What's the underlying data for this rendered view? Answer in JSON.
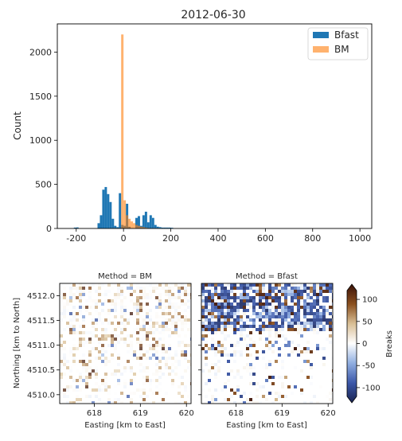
{
  "chart_data": [
    {
      "type": "bar",
      "title": "2012-06-30",
      "xlabel": "",
      "ylabel": "Count",
      "xlim": [
        -280,
        1050
      ],
      "ylim": [
        0,
        2320
      ],
      "xticks": [
        -200,
        0,
        200,
        400,
        600,
        800,
        1000
      ],
      "yticks": [
        0,
        500,
        1000,
        1500,
        2000
      ],
      "legend_position": "top-right",
      "bin_width": 10,
      "series": [
        {
          "name": "Bfast",
          "color": "#1f77b4",
          "alpha": 1.0,
          "bins": [
            {
              "x": -210,
              "count": 10
            },
            {
              "x": -200,
              "count": 12
            },
            {
              "x": -110,
              "count": 60
            },
            {
              "x": -100,
              "count": 150
            },
            {
              "x": -90,
              "count": 440
            },
            {
              "x": -80,
              "count": 470
            },
            {
              "x": -70,
              "count": 390
            },
            {
              "x": -60,
              "count": 300
            },
            {
              "x": -50,
              "count": 110
            },
            {
              "x": -40,
              "count": 30
            },
            {
              "x": -30,
              "count": 15
            },
            {
              "x": -20,
              "count": 400
            },
            {
              "x": -10,
              "count": 40
            },
            {
              "x": 0,
              "count": 30
            },
            {
              "x": 10,
              "count": 280
            },
            {
              "x": 20,
              "count": 20
            },
            {
              "x": 50,
              "count": 120
            },
            {
              "x": 60,
              "count": 140
            },
            {
              "x": 70,
              "count": 30
            },
            {
              "x": 80,
              "count": 150
            },
            {
              "x": 90,
              "count": 190
            },
            {
              "x": 100,
              "count": 70
            },
            {
              "x": 110,
              "count": 150
            },
            {
              "x": 120,
              "count": 120
            },
            {
              "x": 130,
              "count": 40
            },
            {
              "x": 140,
              "count": 20
            },
            {
              "x": 150,
              "count": 15
            },
            {
              "x": 160,
              "count": 10
            },
            {
              "x": 170,
              "count": 10
            },
            {
              "x": 180,
              "count": 10
            },
            {
              "x": 190,
              "count": 10
            },
            {
              "x": 200,
              "count": 8
            }
          ]
        },
        {
          "name": "BM",
          "color": "#ff7f0e",
          "alpha": 0.6,
          "bins": [
            {
              "x": -10,
              "count": 2200
            },
            {
              "x": 0,
              "count": 320
            },
            {
              "x": 10,
              "count": 150
            },
            {
              "x": 20,
              "count": 110
            },
            {
              "x": 30,
              "count": 80
            },
            {
              "x": 40,
              "count": 60
            },
            {
              "x": 50,
              "count": 40
            },
            {
              "x": 60,
              "count": 30
            },
            {
              "x": 70,
              "count": 20
            },
            {
              "x": 80,
              "count": 15
            },
            {
              "x": 90,
              "count": 10
            },
            {
              "x": 100,
              "count": 6
            }
          ]
        }
      ]
    },
    {
      "type": "heatmap",
      "title": "Method = BM",
      "xlabel": "Easting [km to East]",
      "ylabel": "Northing [km to North]",
      "xlim": [
        617.25,
        620.1
      ],
      "ylim": [
        4509.82,
        4512.25
      ],
      "xticks": [
        618,
        619,
        620
      ],
      "yticks": [
        4510.0,
        4510.5,
        4511.0,
        4511.5,
        4512.0
      ],
      "ytick_labels": [
        "4510.0",
        "4510.5",
        "4511.0",
        "4511.5",
        "4512.0"
      ]
    },
    {
      "type": "heatmap",
      "title": "Method = Bfast",
      "xlabel": "Easting [km to East]",
      "xlim": [
        617.25,
        620.1
      ],
      "ylim": [
        4509.82,
        4512.25
      ],
      "xticks": [
        618,
        619,
        620
      ]
    }
  ],
  "colorbar": {
    "label": "Breaks",
    "min": -120,
    "max": 120,
    "ticks": [
      -100,
      -50,
      0,
      50,
      100
    ],
    "colormap": [
      "#1a2350",
      "#3b57a8",
      "#90aee0",
      "#ffffff",
      "#d9bf95",
      "#8a4f1e",
      "#3a1208"
    ]
  }
}
